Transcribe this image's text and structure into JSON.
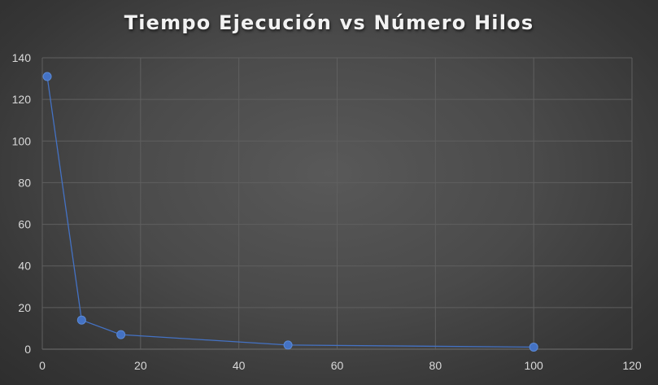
{
  "chart_data": {
    "type": "scatter",
    "title": "Tiempo Ejecución vs Número Hilos",
    "xlabel": "",
    "ylabel": "",
    "xlim": [
      0,
      120
    ],
    "ylim": [
      0,
      140
    ],
    "x_ticks": [
      0,
      20,
      40,
      60,
      80,
      100,
      120
    ],
    "y_ticks": [
      0,
      20,
      40,
      60,
      80,
      100,
      120,
      140
    ],
    "x_tick_labels": [
      "0",
      "20",
      "40",
      "60",
      "80",
      "100",
      "120"
    ],
    "y_tick_labels": [
      "0",
      "20",
      "40",
      "60",
      "80",
      "100",
      "120",
      "140"
    ],
    "grid": true,
    "legend": "none",
    "series": [
      {
        "line": "straight",
        "marker": "circle",
        "color": "#4472c4",
        "points": [
          {
            "x": 1,
            "y": 131
          },
          {
            "x": 8,
            "y": 14
          },
          {
            "x": 16,
            "y": 7
          },
          {
            "x": 50,
            "y": 2
          },
          {
            "x": 100,
            "y": 1
          }
        ]
      }
    ]
  }
}
